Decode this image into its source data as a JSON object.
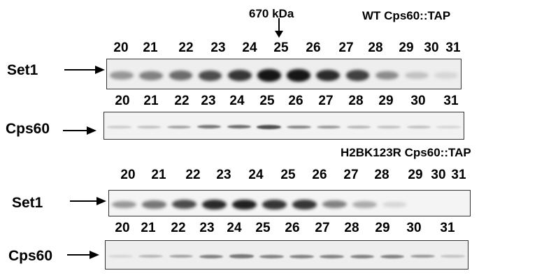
{
  "figure": {
    "marker": {
      "text": "670 kDa",
      "at_fraction": 25
    },
    "panels": [
      {
        "title": "WT Cps60::TAP",
        "rows": [
          {
            "label": "Set1",
            "fractions": [
              "20",
              "21",
              "22",
              "23",
              "24",
              "25",
              "26",
              "27",
              "28",
              "29",
              "30",
              "31"
            ],
            "band_intensity": [
              0.35,
              0.45,
              0.55,
              0.7,
              0.8,
              0.95,
              0.95,
              0.85,
              0.75,
              0.4,
              0.15,
              0.05
            ]
          },
          {
            "label": "Cps60",
            "fractions": [
              "20",
              "21",
              "22",
              "23",
              "24",
              "25",
              "26",
              "27",
              "28",
              "29",
              "30",
              "31"
            ],
            "band_intensity": [
              0.1,
              0.15,
              0.3,
              0.5,
              0.55,
              0.7,
              0.45,
              0.35,
              0.2,
              0.15,
              0.15,
              0.05
            ]
          }
        ]
      },
      {
        "title": "H2BK123R Cps60::TAP",
        "rows": [
          {
            "label": "Set1",
            "fractions": [
              "20",
              "21",
              "22",
              "23",
              "24",
              "25",
              "26",
              "27",
              "28",
              "29",
              "30",
              "31"
            ],
            "band_intensity": [
              0.35,
              0.5,
              0.7,
              0.85,
              0.9,
              0.8,
              0.8,
              0.45,
              0.25,
              0.05,
              0.0,
              0.0
            ]
          },
          {
            "label": "Cps60",
            "fractions": [
              "20",
              "21",
              "22",
              "23",
              "24",
              "25",
              "26",
              "27",
              "28",
              "29",
              "30",
              "31"
            ],
            "band_intensity": [
              0.05,
              0.2,
              0.3,
              0.45,
              0.5,
              0.45,
              0.45,
              0.45,
              0.45,
              0.45,
              0.35,
              0.15
            ]
          }
        ]
      }
    ]
  }
}
